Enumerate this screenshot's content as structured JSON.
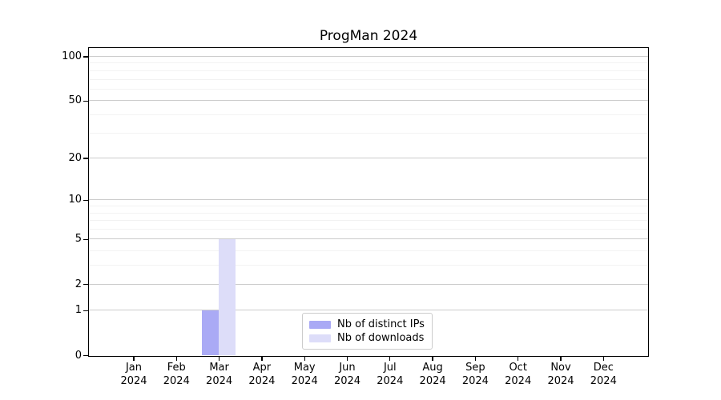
{
  "chart_data": {
    "type": "bar",
    "title": "ProgMan 2024",
    "categories": [
      "Jan",
      "Feb",
      "Mar",
      "Apr",
      "May",
      "Jun",
      "Jul",
      "Aug",
      "Sep",
      "Oct",
      "Nov",
      "Dec"
    ],
    "category_year": "2024",
    "series": [
      {
        "name": "Nb of distinct IPs",
        "color": "#aaaaf5",
        "values": [
          0,
          0,
          1,
          0,
          0,
          0,
          0,
          0,
          0,
          0,
          0,
          0
        ]
      },
      {
        "name": "Nb of downloads",
        "color": "#ddddf9",
        "values": [
          0,
          0,
          5,
          0,
          0,
          0,
          0,
          0,
          0,
          0,
          0,
          0
        ]
      }
    ],
    "xlabel": "",
    "ylabel": "",
    "y_scale": "log1p",
    "y_ticks": [
      0,
      1,
      2,
      5,
      10,
      20,
      50,
      100
    ],
    "y_minor_gridlines": [
      3,
      4,
      6,
      7,
      8,
      9,
      30,
      40,
      60,
      70,
      80,
      90
    ],
    "ylim": [
      0,
      113
    ],
    "grid": true,
    "legend_position": "lower center",
    "colors": {
      "axis": "#000000",
      "grid_major": "#cccccc",
      "grid_minor": "#f2f2f2",
      "title_text": "#000000",
      "tick_text": "#000000",
      "legend_border": "#cccccc"
    }
  }
}
